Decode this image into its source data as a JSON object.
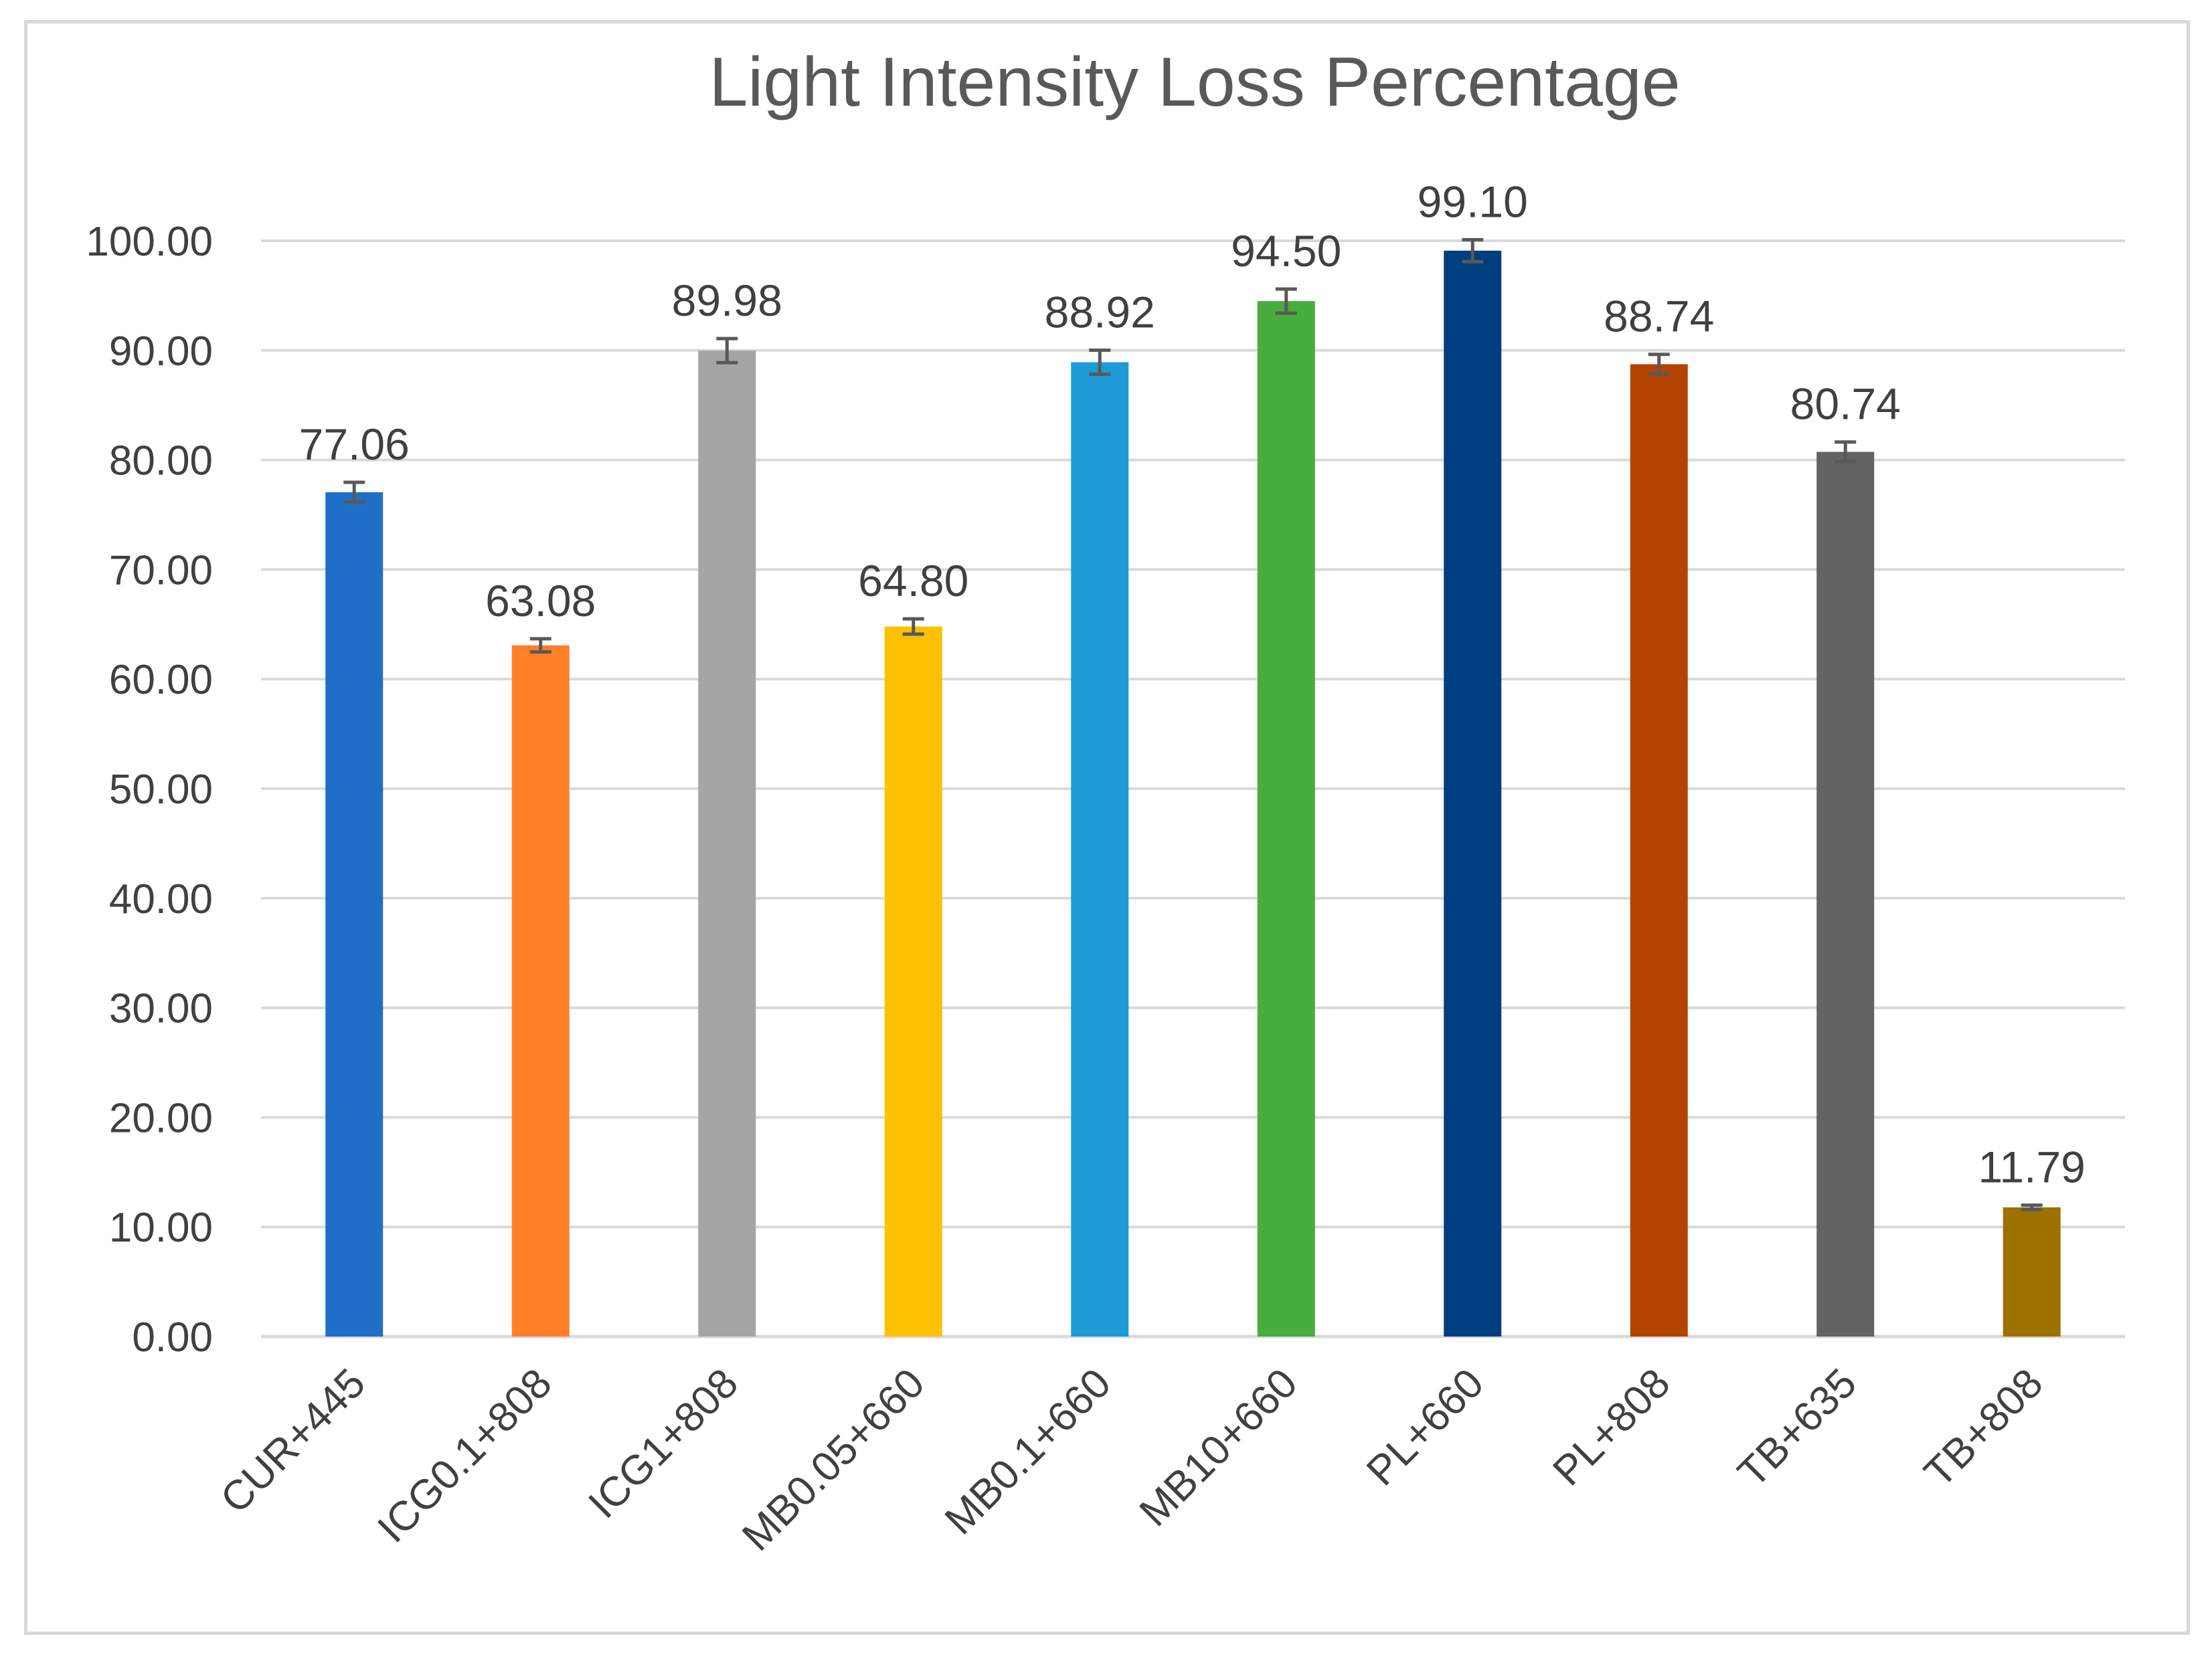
{
  "chart_data": {
    "type": "bar",
    "title": "Light Intensity Loss Percentage",
    "xlabel": "",
    "ylabel": "",
    "ylim": [
      0,
      100
    ],
    "ytick_step": 10,
    "ytick_labels": [
      "0.00",
      "10.00",
      "20.00",
      "30.00",
      "40.00",
      "50.00",
      "60.00",
      "70.00",
      "80.00",
      "90.00",
      "100.00"
    ],
    "grid": true,
    "categories": [
      "CUR+445",
      "ICG0.1+808",
      "ICG1+808",
      "MB0.05+660",
      "MB0.1+660",
      "MB10+660",
      "PL+660",
      "PL+808",
      "TB+635",
      "TB+808"
    ],
    "values": [
      77.06,
      63.08,
      89.98,
      64.8,
      88.92,
      94.5,
      99.1,
      88.74,
      80.74,
      11.79
    ],
    "value_labels": [
      "77.06",
      "63.08",
      "89.98",
      "64.80",
      "88.92",
      "94.50",
      "99.10",
      "88.74",
      "80.74",
      "11.79"
    ],
    "errors": [
      0.9,
      0.6,
      1.1,
      0.7,
      1.1,
      1.1,
      1.0,
      0.9,
      0.9,
      0.2
    ],
    "colors": [
      "#1f6fc9",
      "#ff7f27",
      "#a5a5a5",
      "#ffc000",
      "#1e9bd7",
      "#47ad3c",
      "#003f7f",
      "#b54300",
      "#636363",
      "#9e7000"
    ]
  }
}
